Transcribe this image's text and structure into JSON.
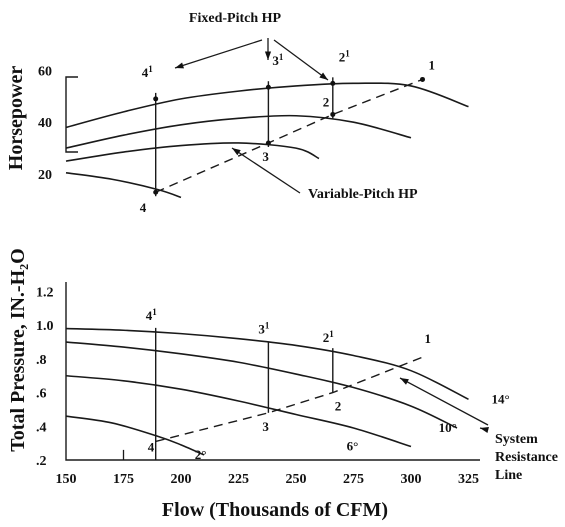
{
  "chart_data": [
    {
      "id": "hp",
      "type": "line",
      "title": "Fixed-Pitch HP",
      "ylabel": "Horsepower",
      "yticks": [
        "60",
        "40",
        "20"
      ],
      "ylim": [
        10,
        64
      ],
      "y_tick_values": [
        60,
        40,
        20
      ],
      "annotation": "Variable-Pitch HP",
      "series": [
        {
          "x": [
            150,
            175,
            200,
            225,
            250,
            275,
            300,
            325
          ],
          "values": [
            38,
            44,
            49,
            52,
            54,
            55,
            54,
            46
          ]
        },
        {
          "x": [
            150,
            175,
            200,
            225,
            250,
            275,
            300
          ],
          "values": [
            30,
            35,
            39,
            41.5,
            42.5,
            40,
            34
          ]
        },
        {
          "x": [
            150,
            175,
            200,
            225,
            250,
            260
          ],
          "values": [
            25,
            28.5,
            31,
            32,
            30,
            26
          ]
        },
        {
          "x": [
            150,
            170,
            190,
            200
          ],
          "values": [
            20.5,
            18,
            14,
            11
          ]
        }
      ],
      "variable_pitch": {
        "x": [
          189,
          238,
          266,
          305
        ],
        "values": [
          13,
          32,
          43,
          56.5
        ]
      },
      "markers": [
        {
          "label": "4¹",
          "x": 189,
          "y": 49
        },
        {
          "label": "3¹",
          "x": 238,
          "y": 53.5
        },
        {
          "label": "2¹",
          "x": 266,
          "y": 55
        },
        {
          "label": "1",
          "x": 305,
          "y": 56.5
        },
        {
          "label": "2",
          "x": 266,
          "y": 43
        },
        {
          "label": "3",
          "x": 238,
          "y": 32
        },
        {
          "label": "4",
          "x": 189,
          "y": 13
        }
      ]
    },
    {
      "id": "tp",
      "type": "line",
      "xlabel": "Flow (Thousands of CFM)",
      "ylabel": "Total Pressure, IN.-H₂O",
      "xticks": [
        "150",
        "175",
        "200",
        "225",
        "250",
        "275",
        "300",
        "325"
      ],
      "x_tick_values": [
        150,
        175,
        200,
        225,
        250,
        275,
        300,
        325
      ],
      "yticks": [
        "1.2",
        "1.0",
        ".8",
        ".6",
        ".4",
        ".2"
      ],
      "y_tick_values": [
        1.2,
        1.0,
        0.8,
        0.6,
        0.4,
        0.2
      ],
      "ylim": [
        0.2,
        1.28
      ],
      "xlim": [
        150,
        330
      ],
      "series": [
        {
          "name": "14°",
          "x": [
            150,
            175,
            200,
            225,
            250,
            275,
            300,
            325
          ],
          "values": [
            0.98,
            0.97,
            0.95,
            0.92,
            0.88,
            0.82,
            0.73,
            0.56
          ]
        },
        {
          "name": "10°",
          "x": [
            150,
            175,
            200,
            225,
            250,
            275,
            300,
            320
          ],
          "values": [
            0.9,
            0.87,
            0.83,
            0.78,
            0.71,
            0.63,
            0.52,
            0.39
          ]
        },
        {
          "name": "6°",
          "x": [
            150,
            175,
            200,
            225,
            250,
            275,
            300
          ],
          "values": [
            0.7,
            0.67,
            0.62,
            0.55,
            0.47,
            0.39,
            0.28
          ]
        },
        {
          "name": "2°",
          "x": [
            150,
            170,
            190,
            200,
            210
          ],
          "values": [
            0.46,
            0.42,
            0.34,
            0.29,
            0.23
          ]
        }
      ],
      "system_resistance": {
        "x": [
          189,
          238,
          266,
          305
        ],
        "values": [
          0.31,
          0.48,
          0.6,
          0.81
        ]
      },
      "system_resistance_label": [
        "System",
        "Resistance",
        "Line"
      ],
      "markers": [
        {
          "label": "4¹",
          "x": 189,
          "y": 0.96
        },
        {
          "label": "3¹",
          "x": 238,
          "y": 0.88
        },
        {
          "label": "2¹",
          "x": 266,
          "y": 0.84
        },
        {
          "label": "1",
          "x": 305,
          "y": 0.81
        },
        {
          "label": "2",
          "x": 266,
          "y": 0.6
        },
        {
          "label": "3",
          "x": 238,
          "y": 0.48
        },
        {
          "label": "4",
          "x": 189,
          "y": 0.31
        }
      ],
      "pitch_labels": [
        "14°",
        "10°",
        "6°",
        "2°"
      ],
      "pitch_label_x": [
        335,
        312,
        272,
        206
      ],
      "pitch_label_y": [
        0.56,
        0.39,
        0.28,
        0.23
      ]
    }
  ]
}
